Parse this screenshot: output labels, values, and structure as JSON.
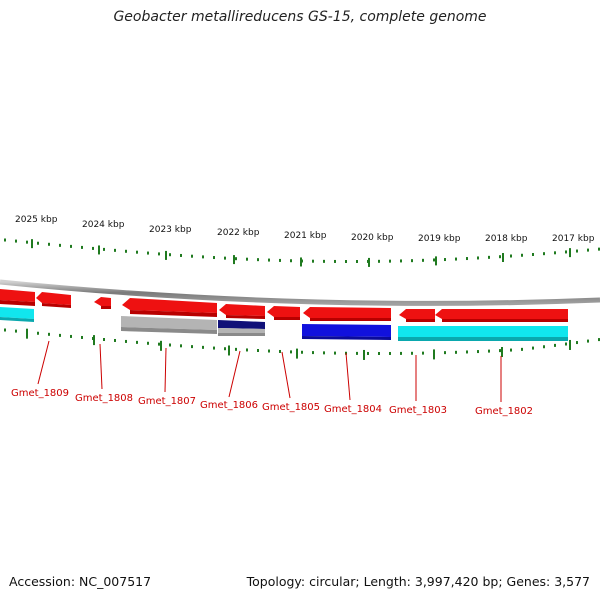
{
  "title": "Geobacter metallireducens GS-15, complete genome",
  "footer": {
    "accession": "Accession: NC_007517",
    "summary": "Topology: circular; Length: 3,997,420 bp; Genes: 3,577"
  },
  "colors": {
    "backbone": "#8c8c8c",
    "tick": "#1f7a1f",
    "gene_label": "#cc0000",
    "forward_gene": "#ee1111",
    "cds_cyan": "#11e6ee",
    "cds_blue": "#1111dd",
    "cds_navy": "#101078",
    "cds_gray": "#b4b4b4"
  },
  "kbp_labels": [
    "2025 kbp",
    "2024 kbp",
    "2023 kbp",
    "2022 kbp",
    "2021 kbp",
    "2020 kbp",
    "2019 kbp",
    "2018 kbp",
    "2017 kbp"
  ],
  "gene_labels": [
    "Gmet_1809",
    "Gmet_1808",
    "Gmet_1807",
    "Gmet_1806",
    "Gmet_1805",
    "Gmet_1804",
    "Gmet_1803",
    "Gmet_1802"
  ]
}
